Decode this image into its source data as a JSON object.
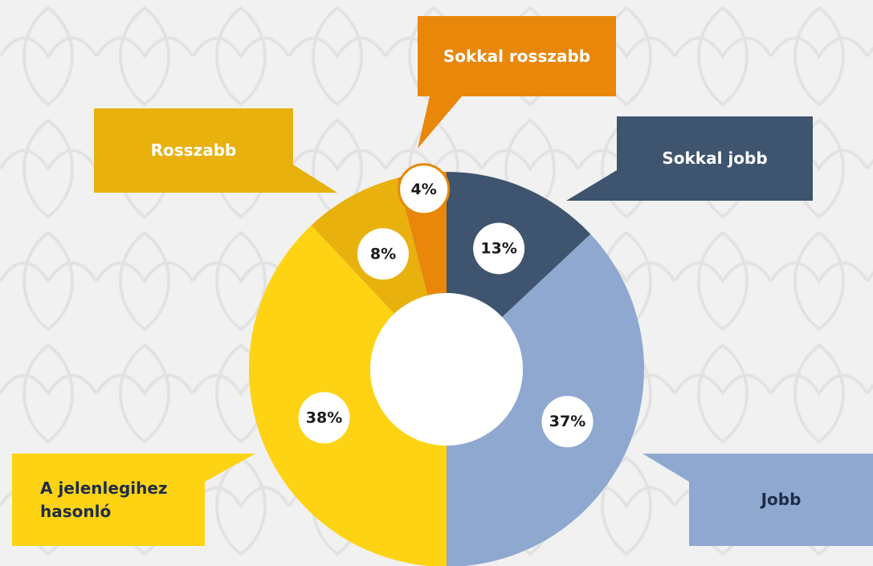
{
  "chart_data": {
    "type": "donut",
    "categories": [
      "Sokkal jobb",
      "Jobb",
      "A jelenlegihez hasonló",
      "Rosszabb",
      "Sokkal rosszabb"
    ],
    "values": [
      13,
      37,
      38,
      8,
      4
    ],
    "value_labels": [
      "13%",
      "37%",
      "38%",
      "8%",
      "4%"
    ],
    "colors": [
      "#3e546f",
      "#8ea8d0",
      "#fdd313",
      "#e8b10e",
      "#e8870a"
    ]
  }
}
